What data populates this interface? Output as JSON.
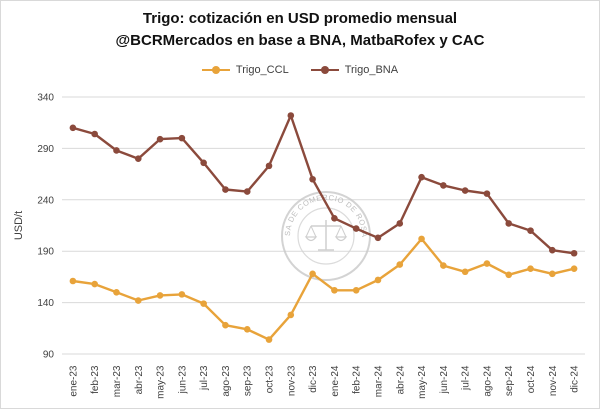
{
  "chart_data": {
    "type": "line",
    "title": "Trigo: cotización en USD promedio mensual",
    "subtitle": "@BCRMercados en base a BNA, MatbaRofex y CAC",
    "ylabel": "USD/t",
    "xlabel": "",
    "ylim": [
      90,
      340
    ],
    "yticks": [
      90,
      140,
      190,
      240,
      290,
      340
    ],
    "grid": true,
    "legend_position": "top",
    "watermark": "BOLSA DE COMERCIO DE ROSARIO",
    "categories": [
      "ene-23",
      "feb-23",
      "mar-23",
      "abr-23",
      "may-23",
      "jun-23",
      "jul-23",
      "ago-23",
      "sep-23",
      "oct-23",
      "nov-23",
      "dic-23",
      "ene-24",
      "feb-24",
      "mar-24",
      "abr-24",
      "may-24",
      "jun-24",
      "jul-24",
      "ago-24",
      "sep-24",
      "oct-24",
      "nov-24",
      "dic-24"
    ],
    "series": [
      {
        "name": "Trigo_CCL",
        "color": "#E8A33A",
        "values": [
          161,
          158,
          150,
          142,
          147,
          148,
          139,
          118,
          114,
          104,
          128,
          168,
          152,
          152,
          162,
          177,
          202,
          176,
          170,
          178,
          167,
          173,
          168,
          173
        ]
      },
      {
        "name": "Trigo_BNA",
        "color": "#8B4A3C",
        "values": [
          310,
          304,
          288,
          280,
          299,
          300,
          276,
          250,
          248,
          273,
          322,
          260,
          222,
          212,
          203,
          217,
          262,
          254,
          249,
          246,
          217,
          210,
          191,
          188
        ]
      }
    ]
  }
}
